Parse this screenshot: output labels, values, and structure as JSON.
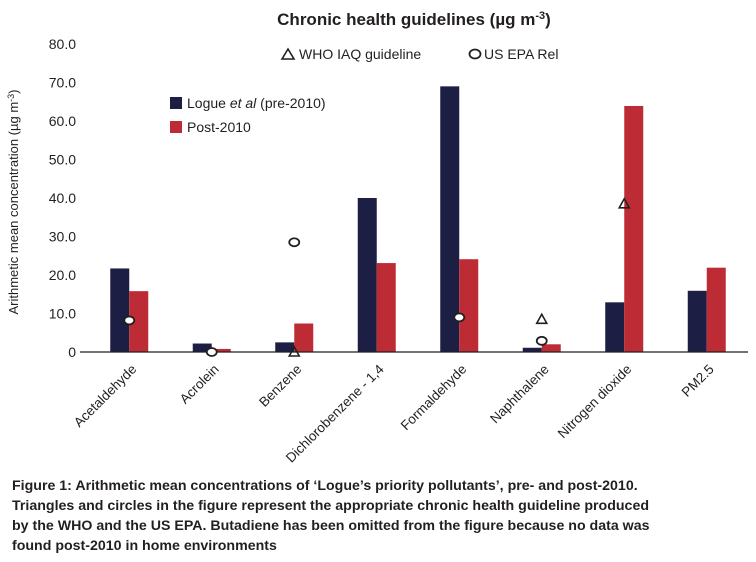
{
  "chart_data": {
    "type": "bar",
    "title": "Chronic health guidelines (µg m-3)",
    "title_main": "Chronic health guidelines (",
    "title_unit": "µg m",
    "title_sup": "-3",
    "title_close": ")",
    "ylabel": "Arithmetic mean concentration (µg m-3)",
    "ylabel_main": "Arithmetic mean concentration (µg m",
    "ylabel_sup": "-3",
    "ylabel_close": ")",
    "ylim": [
      0,
      80
    ],
    "yticks": [
      {
        "value": 0,
        "label": "0"
      },
      {
        "value": 10,
        "label": "10.0"
      },
      {
        "value": 20,
        "label": "20.0"
      },
      {
        "value": 30,
        "label": "30.0"
      },
      {
        "value": 40,
        "label": "40.0"
      },
      {
        "value": 50,
        "label": "50.0"
      },
      {
        "value": 60,
        "label": "60.0"
      },
      {
        "value": 70,
        "label": "70.0"
      },
      {
        "value": 80,
        "label": "80.0"
      }
    ],
    "categories": [
      "Acetaldehyde",
      "Acrolein",
      "Benzene",
      "Dichlorobenzene - 1,4",
      "Formaldehyde",
      "Naphthalene",
      "Nitrogen dioxide",
      "PM2.5"
    ],
    "series": [
      {
        "name": "Logue et al (pre-2010)",
        "name_prefix": "Logue ",
        "name_italic": "et al",
        "name_suffix": " (pre-2010)",
        "color": "#1d1e44",
        "values": [
          21.7,
          2.2,
          2.5,
          40.0,
          69.0,
          1.1,
          12.9,
          15.9
        ]
      },
      {
        "name": "Post-2010",
        "color": "#bd2b34",
        "values": [
          15.8,
          0.8,
          7.4,
          23.1,
          24.1,
          2.0,
          63.9,
          21.9
        ]
      }
    ],
    "markers": {
      "who": {
        "name": "WHO IAQ guideline",
        "symbol": "triangle",
        "values": [
          null,
          null,
          0,
          null,
          null,
          8.5,
          38.5,
          null
        ]
      },
      "epa": {
        "name": "US EPA Rel",
        "symbol": "circle",
        "values": [
          8.2,
          0,
          28.5,
          null,
          9.0,
          2.9,
          null,
          null
        ]
      }
    },
    "legend_position": "top-left",
    "grid": false
  },
  "caption": [
    "Figure 1: Arithmetic mean concentrations of ‘Logue’s priority pollutants’, pre- and post-2010.",
    "Triangles and circles in the figure represent the appropriate chronic health guideline produced",
    "by the WHO and the US EPA. Butadiene has been omitted from the figure because no data was",
    "found post-2010 in home environments"
  ]
}
